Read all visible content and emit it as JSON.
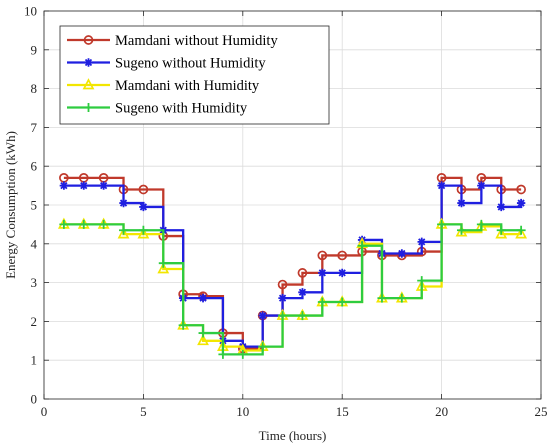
{
  "chart_data": {
    "type": "line",
    "step": "post",
    "title": "",
    "xlabel": "Time (hours)",
    "ylabel": "Energy Consumption (kWh)",
    "xlim": [
      0,
      25
    ],
    "ylim": [
      0,
      10
    ],
    "xticks": [
      0,
      5,
      10,
      15,
      20,
      25
    ],
    "yticks": [
      0,
      1,
      2,
      3,
      4,
      5,
      6,
      7,
      8,
      9,
      10
    ],
    "grid": true,
    "legend_position": "top-left",
    "x": [
      1,
      2,
      3,
      4,
      5,
      6,
      7,
      8,
      9,
      10,
      11,
      12,
      13,
      14,
      15,
      16,
      17,
      18,
      19,
      20,
      21,
      22,
      23,
      24
    ],
    "series": [
      {
        "name": "Mamdani without Humidity",
        "color": "#c0392b",
        "marker": "circle",
        "values": [
          5.7,
          5.7,
          5.7,
          5.4,
          5.4,
          4.2,
          2.7,
          2.65,
          1.7,
          1.3,
          2.15,
          2.95,
          3.25,
          3.7,
          3.7,
          3.8,
          3.7,
          3.7,
          3.8,
          5.7,
          5.4,
          5.7,
          5.4,
          5.4
        ]
      },
      {
        "name": "Sugeno without Humidity",
        "color": "#1f1fe0",
        "marker": "asterisk",
        "values": [
          5.5,
          5.5,
          5.5,
          5.05,
          4.95,
          4.35,
          2.6,
          2.6,
          1.5,
          1.35,
          2.15,
          2.6,
          2.75,
          3.25,
          3.25,
          4.1,
          3.75,
          3.75,
          4.05,
          5.5,
          5.05,
          5.5,
          4.95,
          5.05
        ]
      },
      {
        "name": "Mamdani with Humidity",
        "color": "#f2e600",
        "marker": "triangle",
        "values": [
          4.5,
          4.5,
          4.5,
          4.25,
          4.25,
          3.35,
          1.9,
          1.5,
          1.35,
          1.25,
          1.35,
          2.15,
          2.15,
          2.5,
          2.5,
          4.0,
          2.6,
          2.6,
          2.9,
          4.5,
          4.3,
          4.45,
          4.25,
          4.25
        ]
      },
      {
        "name": "Sugeno with Humidity",
        "color": "#2ecc40",
        "marker": "plus",
        "values": [
          4.5,
          4.5,
          4.5,
          4.35,
          4.35,
          3.5,
          1.9,
          1.7,
          1.15,
          1.15,
          1.35,
          2.15,
          2.15,
          2.5,
          2.5,
          3.95,
          2.6,
          2.6,
          3.05,
          4.5,
          4.35,
          4.5,
          4.35,
          4.35
        ]
      }
    ]
  }
}
